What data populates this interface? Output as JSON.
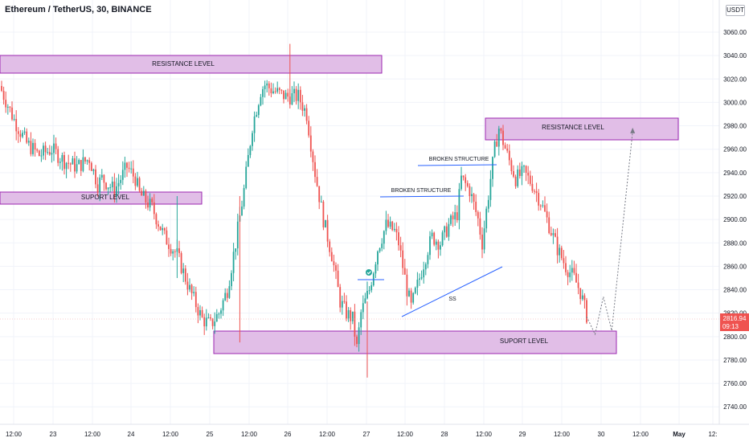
{
  "header": {
    "symbol_title": "Ethereum / TetherUS, 30, BINANCE",
    "currency": "USDT"
  },
  "price_axis": {
    "ticks": [
      "3060.00",
      "3040.00",
      "3020.00",
      "3000.00",
      "2980.00",
      "2960.00",
      "2940.00",
      "2920.00",
      "2900.00",
      "2880.00",
      "2860.00",
      "2840.00",
      "2820.00",
      "2800.00",
      "2780.00",
      "2760.00",
      "2740.00"
    ],
    "last_price": "2816.94",
    "countdown": "09:13",
    "last_price_color": "#ef5350"
  },
  "time_axis": {
    "ticks": [
      "12:00",
      "23",
      "12:00",
      "24",
      "12:00",
      "25",
      "12:00",
      "26",
      "12:00",
      "27",
      "12:00",
      "28",
      "12:00",
      "29",
      "12:00",
      "30",
      "12:00",
      "May",
      "12:"
    ]
  },
  "annotations": {
    "resistance_top": "RESISTANCE LEVEL",
    "resistance_right": "RESISTANCE LEVEL",
    "support_left": "SUPORT LEVEL",
    "support_bottom": "SUPORT LEVEL",
    "broken_structure_1": "BROKEN STRUCTURE",
    "broken_structure_2": "BROKEN STRUCTURE",
    "trendline_label": "SS"
  },
  "colors": {
    "up_candle": "#26a69a",
    "down_candle": "#ef5350",
    "zone_fill": "#e1bee7",
    "zone_border": "#9c27b0",
    "line_blue": "#2962ff",
    "grid": "#f0f3fa"
  },
  "chart_data": {
    "type": "candlestick",
    "symbol": "Ethereum / TetherUS",
    "interval": "30",
    "exchange": "BINANCE",
    "ylim": [
      2730,
      3075
    ],
    "close_path": [
      [
        0,
        3010
      ],
      [
        6,
        2985
      ],
      [
        12,
        2965
      ],
      [
        18,
        2955
      ],
      [
        24,
        2960
      ],
      [
        30,
        2950
      ],
      [
        36,
        2945
      ],
      [
        42,
        2952
      ],
      [
        46,
        2930
      ],
      [
        48,
        2935
      ],
      [
        54,
        2925
      ],
      [
        60,
        2945
      ],
      [
        64,
        2935
      ],
      [
        66,
        2922
      ],
      [
        72,
        2910
      ],
      [
        78,
        2885
      ],
      [
        84,
        2870
      ],
      [
        86,
        2860
      ],
      [
        90,
        2840
      ],
      [
        96,
        2815
      ],
      [
        100,
        2810
      ],
      [
        104,
        2820
      ],
      [
        108,
        2840
      ],
      [
        112,
        2880
      ],
      [
        116,
        2925
      ],
      [
        120,
        2980
      ],
      [
        124,
        3010
      ],
      [
        126,
        3015
      ],
      [
        130,
        3010
      ],
      [
        136,
        3005
      ],
      [
        142,
        3005
      ],
      [
        146,
        2990
      ],
      [
        150,
        2940
      ],
      [
        154,
        2900
      ],
      [
        158,
        2870
      ],
      [
        160,
        2850
      ],
      [
        162,
        2830
      ],
      [
        165,
        2820
      ],
      [
        168,
        2815
      ],
      [
        170,
        2790
      ],
      [
        172,
        2820
      ],
      [
        176,
        2840
      ],
      [
        180,
        2875
      ],
      [
        184,
        2895
      ],
      [
        188,
        2890
      ],
      [
        190,
        2880
      ],
      [
        194,
        2840
      ],
      [
        196,
        2825
      ],
      [
        200,
        2850
      ],
      [
        204,
        2875
      ],
      [
        206,
        2885
      ],
      [
        210,
        2880
      ],
      [
        214,
        2895
      ],
      [
        218,
        2905
      ],
      [
        220,
        2935
      ],
      [
        224,
        2925
      ],
      [
        228,
        2900
      ],
      [
        230,
        2880
      ],
      [
        234,
        2935
      ],
      [
        236,
        2960
      ],
      [
        238,
        2978
      ],
      [
        242,
        2955
      ],
      [
        246,
        2935
      ],
      [
        250,
        2940
      ],
      [
        254,
        2930
      ],
      [
        258,
        2915
      ],
      [
        262,
        2895
      ],
      [
        266,
        2875
      ],
      [
        270,
        2860
      ],
      [
        274,
        2850
      ],
      [
        277,
        2838
      ],
      [
        280,
        2818
      ]
    ],
    "projection_path": [
      [
        280,
        2817
      ],
      [
        284,
        2802
      ],
      [
        288,
        2834
      ],
      [
        292,
        2805
      ],
      [
        302,
        2975
      ]
    ],
    "levels": [
      {
        "label": "RESISTANCE LEVEL",
        "price_range": [
          3025,
          3041
        ]
      },
      {
        "label": "SUPORT LEVEL",
        "price_range": [
          2915,
          2925
        ]
      },
      {
        "label": "RESISTANCE LEVEL",
        "price_range": [
          2968,
          2986
        ]
      },
      {
        "label": "SUPORT LEVEL",
        "price_range": [
          2787,
          2806
        ]
      }
    ]
  }
}
